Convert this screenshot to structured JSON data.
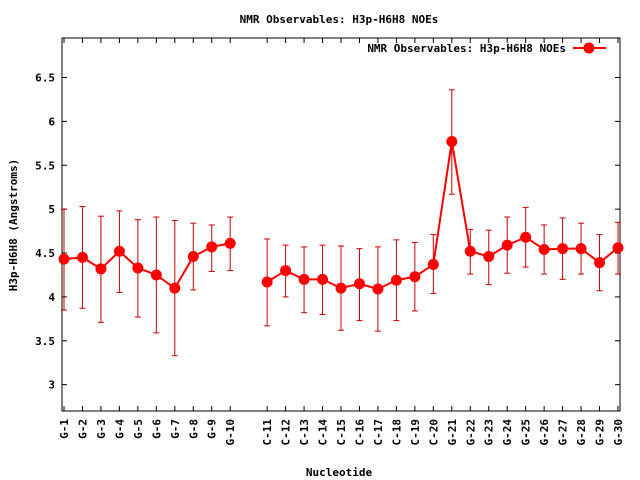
{
  "chart_data": {
    "type": "line",
    "title": "NMR Observables: H3p-H6H8 NOEs",
    "xlabel": "Nucleotide",
    "ylabel": "H3p-H6H8 (Angstroms)",
    "ylim": [
      2.7,
      6.95
    ],
    "yticks": [
      3,
      3.5,
      4,
      4.5,
      5,
      5.5,
      6,
      6.5
    ],
    "ytick_labels": [
      "3",
      "3.5",
      "4",
      "4.5",
      "5",
      "5.5",
      "6",
      "6.5"
    ],
    "x": [
      1,
      2,
      3,
      4,
      5,
      6,
      7,
      8,
      9,
      10,
      12,
      13,
      14,
      15,
      16,
      17,
      18,
      19,
      20,
      21,
      22,
      23,
      24,
      25,
      26,
      27,
      28,
      29,
      30,
      31
    ],
    "xlim": [
      1,
      31
    ],
    "categories": [
      "G-1",
      "G-2",
      "G-3",
      "G-4",
      "G-5",
      "G-6",
      "G-7",
      "G-8",
      "G-9",
      "G-10",
      "C-11",
      "C-12",
      "C-13",
      "C-14",
      "C-15",
      "C-16",
      "C-17",
      "C-18",
      "C-19",
      "C-20",
      "G-21",
      "G-22",
      "G-23",
      "G-24",
      "G-25",
      "G-26",
      "G-27",
      "G-28",
      "G-29",
      "G-30"
    ],
    "legend_position": "top-right",
    "grid": false,
    "series": [
      {
        "name": "NMR Observables: H3p-H6H8 NOEs",
        "color": "#ff0000",
        "values": [
          4.43,
          4.45,
          4.32,
          4.52,
          4.33,
          4.25,
          4.1,
          4.46,
          4.57,
          4.61,
          4.17,
          4.3,
          4.2,
          4.2,
          4.1,
          4.15,
          4.09,
          4.19,
          4.23,
          4.37,
          5.77,
          4.52,
          4.46,
          4.59,
          4.68,
          4.54,
          4.55,
          4.55,
          4.39,
          4.56
        ],
        "error_low": [
          3.85,
          3.87,
          3.71,
          4.05,
          3.77,
          3.59,
          3.33,
          4.08,
          4.29,
          4.3,
          3.67,
          4.0,
          3.82,
          3.8,
          3.62,
          3.73,
          3.61,
          3.73,
          3.84,
          4.04,
          5.17,
          4.26,
          4.14,
          4.27,
          4.34,
          4.26,
          4.2,
          4.26,
          4.07,
          4.26
        ],
        "error_high": [
          5.0,
          5.03,
          4.92,
          4.98,
          4.88,
          4.91,
          4.87,
          4.84,
          4.82,
          4.91,
          4.66,
          4.59,
          4.57,
          4.59,
          4.58,
          4.55,
          4.57,
          4.65,
          4.62,
          4.71,
          6.36,
          4.77,
          4.76,
          4.91,
          5.02,
          4.82,
          4.9,
          4.84,
          4.71,
          4.85
        ],
        "segments": [
          [
            0,
            9
          ],
          [
            10,
            29
          ]
        ]
      }
    ]
  }
}
